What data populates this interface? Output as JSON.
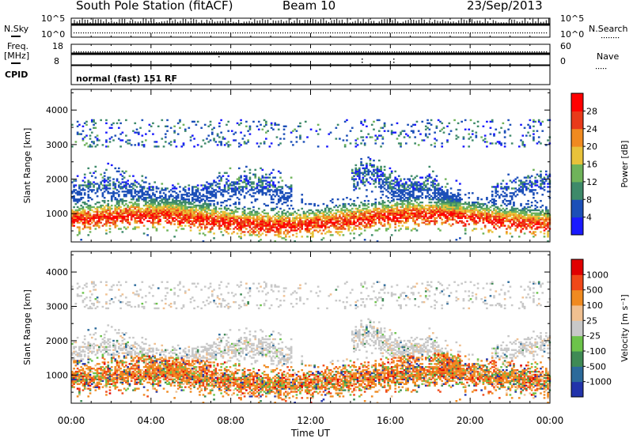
{
  "header": {
    "station": "South Pole Station (fitACF)",
    "beam": "Beam 10",
    "date": "23/Sep/2013"
  },
  "top_panels": {
    "nsky_label": "N.Sky",
    "nsky_hi": "10^5",
    "nsky_lo": "10^0",
    "nsearch_label": "N.Search",
    "nsearch_hi": "10^5",
    "nsearch_lo": "10^0",
    "freq_label": "Freq.",
    "freq_unit": "[MHz]",
    "freq_hi": "18",
    "freq_lo": "8",
    "nave_label": "Nave",
    "nave_hi": "60",
    "nave_lo": "0",
    "cpid_label": "CPID",
    "cpid_value": "normal (fast) 151 RF"
  },
  "chart_data": [
    {
      "type": "heatmap",
      "title": "",
      "ylabel": "Slant Range [km]",
      "xlabel": "",
      "ylim": [
        180,
        4600
      ],
      "yticks": [
        1000,
        2000,
        3000,
        4000
      ],
      "xlim": [
        0,
        24
      ],
      "colorbar": {
        "label": "Power [dB]",
        "ticks": [
          4,
          8,
          12,
          16,
          20,
          24,
          28
        ],
        "range": [
          0,
          30
        ],
        "colors": [
          "#1a1aff",
          "#1c4fb8",
          "#3e8a6a",
          "#6fb35a",
          "#e8c23a",
          "#f08a20",
          "#e83a1a",
          "#ff0000"
        ]
      },
      "features": [
        {
          "name": "main echo band",
          "t_start": 0,
          "t_end": 24,
          "range_min": 500,
          "range_max": 1600
        },
        {
          "name": "upper diffuse band",
          "t_start": 0,
          "t_end": 11,
          "range_min": 1300,
          "range_max": 2200
        },
        {
          "name": "afternoon arcs",
          "t_start": 14,
          "t_end": 19,
          "range_min": 1400,
          "range_max": 2500
        }
      ]
    },
    {
      "type": "heatmap",
      "title": "",
      "ylabel": "Slant Range [km]",
      "xlabel": "Time UT",
      "ylim": [
        180,
        4600
      ],
      "yticks": [
        1000,
        2000,
        3000,
        4000
      ],
      "xlim": [
        0,
        24
      ],
      "xticklabels": [
        "00:00",
        "04:00",
        "08:00",
        "12:00",
        "16:00",
        "20:00",
        "00:00"
      ],
      "colorbar": {
        "label": "Velocity [m s⁻¹]",
        "ticks": [
          1000,
          500,
          100,
          25,
          -25,
          -100,
          -500,
          -1000
        ],
        "tick_labels": [
          "1000",
          "500",
          "100",
          "25",
          "-25",
          "-100",
          "-500",
          "-1000"
        ],
        "colors": [
          "#2233aa",
          "#2c6a9a",
          "#3f8a55",
          "#6cc34a",
          "#c8c8c8",
          "#f0c090",
          "#f08a20",
          "#f04818",
          "#e00000"
        ]
      },
      "features": [
        {
          "name": "orange band",
          "t_start": 0,
          "t_end": 24,
          "range_min": 500,
          "range_max": 1300
        },
        {
          "name": "grey ground scatter",
          "t_start": 0,
          "t_end": 13,
          "range_min": 1600,
          "range_max": 2300
        },
        {
          "name": "grey afternoon scatter",
          "t_start": 14,
          "t_end": 19,
          "range_min": 1400,
          "range_max": 2300
        }
      ]
    }
  ],
  "colors": {
    "axis": "#000000",
    "background": "#ffffff"
  }
}
